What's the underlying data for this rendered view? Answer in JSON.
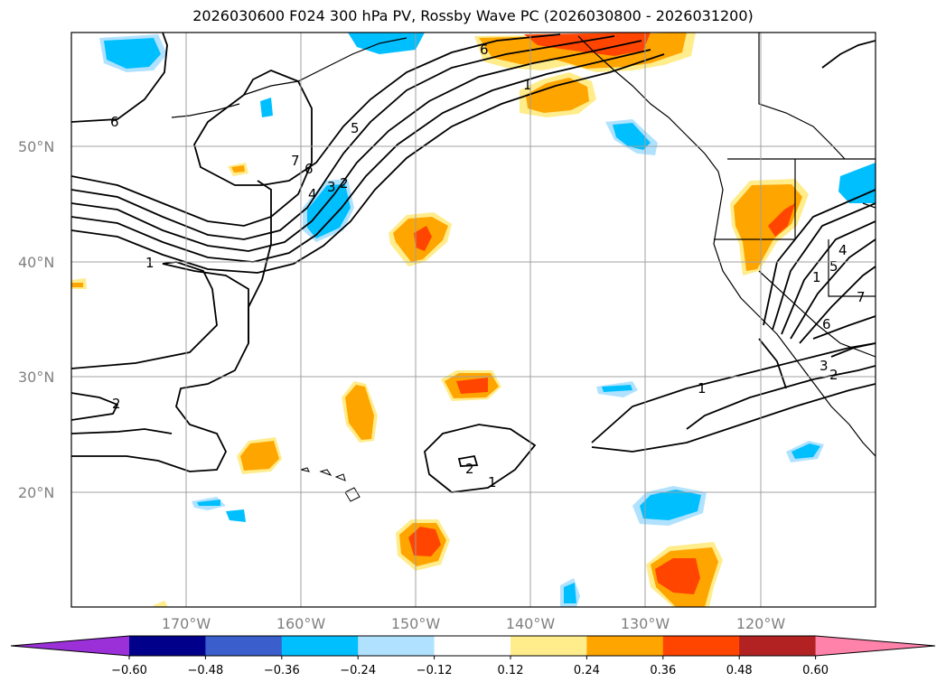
{
  "title": "2026030600 F024 300 hPa PV, Rossby Wave PC (2026030800 - 2026031200)",
  "map": {
    "lat_ticks": [
      "50°N",
      "40°N",
      "30°N",
      "20°N"
    ],
    "lon_ticks": [
      "170°W",
      "160°W",
      "150°W",
      "140°W",
      "130°W",
      "120°W"
    ]
  },
  "colorbar": {
    "ticks": [
      "−0.60",
      "−0.48",
      "−0.36",
      "−0.24",
      "−0.12",
      "0.12",
      "0.24",
      "0.36",
      "0.48",
      "0.60"
    ],
    "colors": [
      "#9b30d9",
      "#00008b",
      "#3a5fcd",
      "#00bfff",
      "#b0e2ff",
      "#ffffff",
      "#ffec8b",
      "#ffa500",
      "#ff4500",
      "#b22222",
      "#ff82ab"
    ]
  },
  "contour_labels": [
    "6",
    "1",
    "5",
    "7",
    "6",
    "4",
    "3",
    "2",
    "1",
    "2",
    "2",
    "1",
    "1",
    "6",
    "7",
    "4",
    "5",
    "1",
    "6",
    "3",
    "2"
  ]
}
